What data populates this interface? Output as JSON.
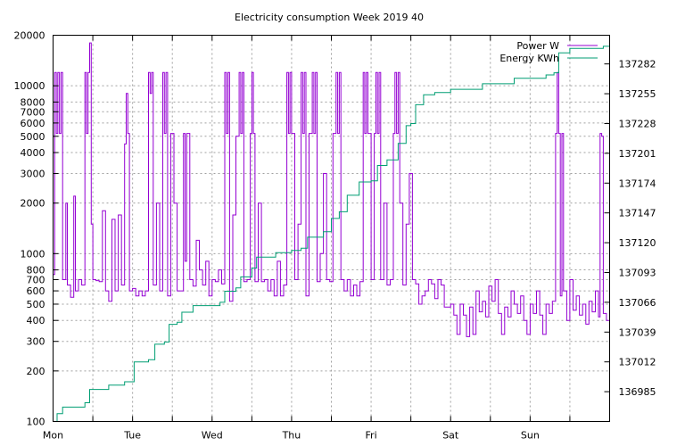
{
  "chart_data": {
    "type": "line",
    "title": "Electricity consumption Week 2019 40",
    "xlabel": "",
    "ylabel": "",
    "x_ticks": [
      "Mon",
      "Tue",
      "Wed",
      "Thu",
      "Fri",
      "Sat",
      "Sun"
    ],
    "x_range_days": [
      0,
      7
    ],
    "y_left": {
      "scale": "log",
      "range": [
        100,
        20000
      ],
      "ticks": [
        100,
        200,
        300,
        400,
        500,
        600,
        700,
        800,
        1000,
        2000,
        3000,
        4000,
        5000,
        6000,
        7000,
        8000,
        10000,
        20000
      ],
      "tick_labels": [
        "100",
        "200",
        "300",
        "400",
        "500",
        "600",
        "700",
        "800",
        "1000",
        "2000",
        "3000",
        "4000",
        "5000",
        "6000",
        "7000",
        "8000",
        "10000",
        "20000"
      ]
    },
    "y_right": {
      "scale": "linear",
      "range": [
        136958,
        137308
      ],
      "ticks": [
        136985,
        137012,
        137039,
        137066,
        137093,
        137120,
        137147,
        137174,
        137201,
        137228,
        137255,
        137282
      ],
      "tick_labels": [
        "136985",
        "137012",
        "137039",
        "137066",
        "137093",
        "137120",
        "137147",
        "137174",
        "137201",
        "137228",
        "137255",
        "137282"
      ]
    },
    "grid": true,
    "legend_position": "top-right",
    "series": [
      {
        "name": "Power W",
        "axis": "left",
        "color": "#9400d3",
        "points": [
          [
            0.0,
            750
          ],
          [
            0.02,
            12000
          ],
          [
            0.04,
            5200
          ],
          [
            0.06,
            12000
          ],
          [
            0.08,
            5200
          ],
          [
            0.1,
            12000
          ],
          [
            0.12,
            700
          ],
          [
            0.16,
            2000
          ],
          [
            0.18,
            650
          ],
          [
            0.22,
            550
          ],
          [
            0.26,
            2200
          ],
          [
            0.28,
            600
          ],
          [
            0.32,
            700
          ],
          [
            0.36,
            650
          ],
          [
            0.4,
            12000
          ],
          [
            0.42,
            5200
          ],
          [
            0.44,
            12000
          ],
          [
            0.46,
            18000
          ],
          [
            0.48,
            1500
          ],
          [
            0.5,
            700
          ],
          [
            0.54,
            690
          ],
          [
            0.58,
            680
          ],
          [
            0.62,
            1800
          ],
          [
            0.66,
            600
          ],
          [
            0.7,
            520
          ],
          [
            0.74,
            1600
          ],
          [
            0.78,
            600
          ],
          [
            0.82,
            1700
          ],
          [
            0.86,
            650
          ],
          [
            0.9,
            4500
          ],
          [
            0.92,
            9000
          ],
          [
            0.94,
            5200
          ],
          [
            0.96,
            600
          ],
          [
            1.0,
            620
          ],
          [
            1.04,
            560
          ],
          [
            1.08,
            600
          ],
          [
            1.12,
            560
          ],
          [
            1.16,
            600
          ],
          [
            1.2,
            12000
          ],
          [
            1.22,
            9000
          ],
          [
            1.24,
            12000
          ],
          [
            1.26,
            650
          ],
          [
            1.3,
            2000
          ],
          [
            1.34,
            600
          ],
          [
            1.38,
            12000
          ],
          [
            1.4,
            5200
          ],
          [
            1.42,
            12000
          ],
          [
            1.44,
            560
          ],
          [
            1.48,
            5200
          ],
          [
            1.52,
            2000
          ],
          [
            1.56,
            600
          ],
          [
            1.6,
            600
          ],
          [
            1.64,
            5200
          ],
          [
            1.66,
            900
          ],
          [
            1.68,
            5200
          ],
          [
            1.7,
            5200
          ],
          [
            1.72,
            700
          ],
          [
            1.76,
            640
          ],
          [
            1.8,
            1200
          ],
          [
            1.84,
            800
          ],
          [
            1.88,
            650
          ],
          [
            1.92,
            900
          ],
          [
            1.96,
            560
          ],
          [
            2.0,
            700
          ],
          [
            2.04,
            680
          ],
          [
            2.08,
            800
          ],
          [
            2.12,
            660
          ],
          [
            2.16,
            12000
          ],
          [
            2.18,
            5200
          ],
          [
            2.2,
            12000
          ],
          [
            2.22,
            520
          ],
          [
            2.26,
            1700
          ],
          [
            2.3,
            5000
          ],
          [
            2.34,
            12000
          ],
          [
            2.36,
            5200
          ],
          [
            2.38,
            12000
          ],
          [
            2.4,
            680
          ],
          [
            2.44,
            700
          ],
          [
            2.48,
            5200
          ],
          [
            2.5,
            12000
          ],
          [
            2.52,
            5200
          ],
          [
            2.54,
            680
          ],
          [
            2.58,
            2000
          ],
          [
            2.62,
            680
          ],
          [
            2.66,
            700
          ],
          [
            2.7,
            600
          ],
          [
            2.74,
            700
          ],
          [
            2.78,
            560
          ],
          [
            2.82,
            900
          ],
          [
            2.86,
            560
          ],
          [
            2.9,
            650
          ],
          [
            2.94,
            12000
          ],
          [
            2.96,
            5200
          ],
          [
            2.98,
            12000
          ],
          [
            3.0,
            5200
          ],
          [
            3.04,
            700
          ],
          [
            3.08,
            1500
          ],
          [
            3.12,
            12000
          ],
          [
            3.14,
            5200
          ],
          [
            3.16,
            12000
          ],
          [
            3.18,
            560
          ],
          [
            3.22,
            5200
          ],
          [
            3.26,
            12000
          ],
          [
            3.28,
            5200
          ],
          [
            3.3,
            12000
          ],
          [
            3.32,
            680
          ],
          [
            3.36,
            1000
          ],
          [
            3.4,
            3000
          ],
          [
            3.44,
            700
          ],
          [
            3.48,
            680
          ],
          [
            3.52,
            5200
          ],
          [
            3.56,
            12000
          ],
          [
            3.58,
            5200
          ],
          [
            3.6,
            12000
          ],
          [
            3.62,
            700
          ],
          [
            3.66,
            600
          ],
          [
            3.7,
            700
          ],
          [
            3.74,
            560
          ],
          [
            3.78,
            650
          ],
          [
            3.82,
            560
          ],
          [
            3.86,
            680
          ],
          [
            3.9,
            12000
          ],
          [
            3.92,
            5200
          ],
          [
            3.94,
            12000
          ],
          [
            3.96,
            5200
          ],
          [
            4.0,
            700
          ],
          [
            4.04,
            5200
          ],
          [
            4.06,
            12000
          ],
          [
            4.08,
            5200
          ],
          [
            4.1,
            12000
          ],
          [
            4.12,
            700
          ],
          [
            4.16,
            2000
          ],
          [
            4.2,
            650
          ],
          [
            4.24,
            700
          ],
          [
            4.28,
            5200
          ],
          [
            4.3,
            12000
          ],
          [
            4.32,
            5200
          ],
          [
            4.34,
            12000
          ],
          [
            4.36,
            2000
          ],
          [
            4.4,
            650
          ],
          [
            4.44,
            1500
          ],
          [
            4.48,
            3000
          ],
          [
            4.52,
            700
          ],
          [
            4.56,
            660
          ],
          [
            4.6,
            500
          ],
          [
            4.64,
            560
          ],
          [
            4.68,
            600
          ],
          [
            4.72,
            700
          ],
          [
            4.76,
            660
          ],
          [
            4.8,
            540
          ],
          [
            4.84,
            700
          ],
          [
            4.88,
            650
          ],
          [
            4.92,
            480
          ],
          [
            5.0,
            500
          ],
          [
            5.04,
            430
          ],
          [
            5.08,
            330
          ],
          [
            5.12,
            500
          ],
          [
            5.16,
            430
          ],
          [
            5.2,
            320
          ],
          [
            5.24,
            480
          ],
          [
            5.28,
            330
          ],
          [
            5.32,
            600
          ],
          [
            5.36,
            450
          ],
          [
            5.4,
            520
          ],
          [
            5.44,
            420
          ],
          [
            5.48,
            640
          ],
          [
            5.52,
            520
          ],
          [
            5.56,
            700
          ],
          [
            5.6,
            440
          ],
          [
            5.64,
            330
          ],
          [
            5.68,
            480
          ],
          [
            5.72,
            420
          ],
          [
            5.76,
            600
          ],
          [
            5.8,
            500
          ],
          [
            5.84,
            440
          ],
          [
            5.88,
            560
          ],
          [
            5.92,
            400
          ],
          [
            5.96,
            330
          ],
          [
            6.0,
            500
          ],
          [
            6.04,
            440
          ],
          [
            6.08,
            600
          ],
          [
            6.12,
            430
          ],
          [
            6.16,
            330
          ],
          [
            6.2,
            500
          ],
          [
            6.24,
            440
          ],
          [
            6.28,
            520
          ],
          [
            6.32,
            5200
          ],
          [
            6.34,
            12000
          ],
          [
            6.36,
            5200
          ],
          [
            6.38,
            560
          ],
          [
            6.4,
            5200
          ],
          [
            6.42,
            600
          ],
          [
            6.46,
            400
          ],
          [
            6.5,
            700
          ],
          [
            6.54,
            460
          ],
          [
            6.58,
            560
          ],
          [
            6.62,
            430
          ],
          [
            6.66,
            500
          ],
          [
            6.7,
            380
          ],
          [
            6.74,
            520
          ],
          [
            6.78,
            450
          ],
          [
            6.82,
            600
          ],
          [
            6.86,
            420
          ],
          [
            6.88,
            5200
          ],
          [
            6.9,
            5000
          ],
          [
            6.92,
            440
          ],
          [
            6.96,
            400
          ],
          [
            7.0,
            420
          ]
        ]
      },
      {
        "name": "Energy KWh",
        "axis": "right",
        "color": "#009e73",
        "points": [
          [
            0.0,
            136958
          ],
          [
            0.05,
            136965
          ],
          [
            0.12,
            136971
          ],
          [
            0.4,
            136975
          ],
          [
            0.46,
            136987
          ],
          [
            0.7,
            136991
          ],
          [
            0.9,
            136994
          ],
          [
            1.02,
            137012
          ],
          [
            1.2,
            137014
          ],
          [
            1.28,
            137028
          ],
          [
            1.4,
            137030
          ],
          [
            1.46,
            137046
          ],
          [
            1.56,
            137048
          ],
          [
            1.62,
            137057
          ],
          [
            1.76,
            137063
          ],
          [
            2.1,
            137066
          ],
          [
            2.16,
            137076
          ],
          [
            2.3,
            137079
          ],
          [
            2.36,
            137089
          ],
          [
            2.5,
            137097
          ],
          [
            2.56,
            137107
          ],
          [
            2.8,
            137111
          ],
          [
            3.0,
            137113
          ],
          [
            3.12,
            137115
          ],
          [
            3.2,
            137125
          ],
          [
            3.4,
            137130
          ],
          [
            3.5,
            137142
          ],
          [
            3.6,
            137148
          ],
          [
            3.7,
            137163
          ],
          [
            3.85,
            137175
          ],
          [
            4.0,
            137176
          ],
          [
            4.08,
            137190
          ],
          [
            4.2,
            137195
          ],
          [
            4.34,
            137210
          ],
          [
            4.44,
            137226
          ],
          [
            4.5,
            137228
          ],
          [
            4.56,
            137245
          ],
          [
            4.66,
            137254
          ],
          [
            4.8,
            137256
          ],
          [
            5.0,
            137259
          ],
          [
            5.4,
            137264
          ],
          [
            5.8,
            137269
          ],
          [
            6.2,
            137272
          ],
          [
            6.3,
            137274
          ],
          [
            6.36,
            137292
          ],
          [
            6.5,
            137296
          ],
          [
            6.8,
            137296
          ],
          [
            6.92,
            137298
          ],
          [
            7.0,
            137307
          ]
        ]
      }
    ]
  }
}
